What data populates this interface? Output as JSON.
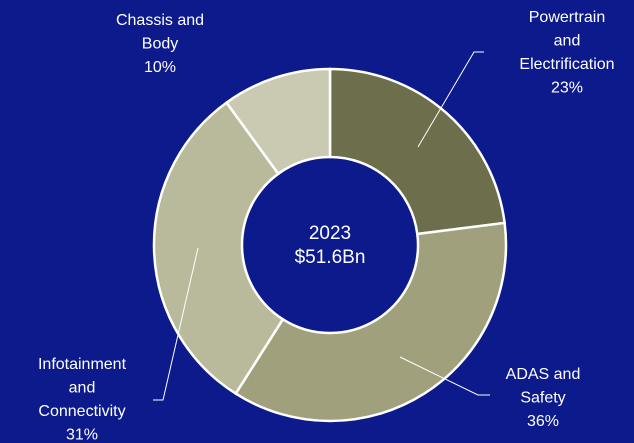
{
  "chart_data": {
    "type": "donut",
    "center_title": "2023",
    "center_value": "$51.6Bn",
    "categories": [
      "Powertrain and Electrification",
      "ADAS and Safety",
      "Infotainment and Connectivity",
      "Chassis and Body"
    ],
    "values": [
      23,
      36,
      31,
      10
    ],
    "value_labels": [
      "23%",
      "36%",
      "31%",
      "10%"
    ],
    "colors": [
      "#6d6f4c",
      "#a0a17c",
      "#b9ba9b",
      "#cacab2"
    ]
  }
}
